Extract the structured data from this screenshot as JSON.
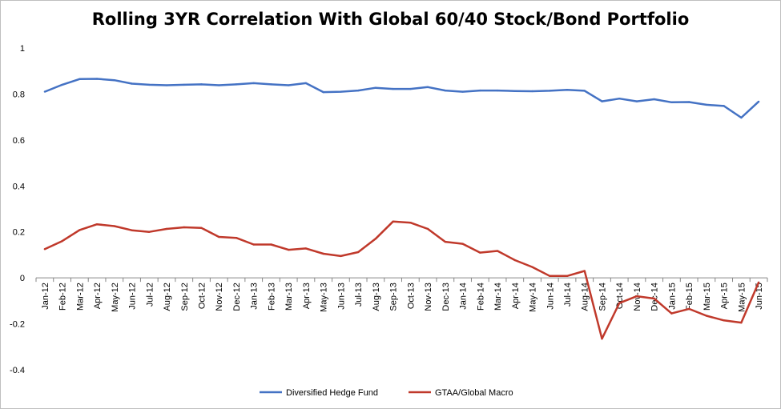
{
  "chart_data": {
    "type": "line",
    "title": "Rolling 3YR Correlation With Global 60/40 Stock/Bond Portfolio",
    "xlabel": "",
    "ylabel": "",
    "ylim": [
      -0.4,
      1
    ],
    "yticks": [
      -0.4,
      -0.2,
      0,
      0.2,
      0.4,
      0.6,
      0.8,
      1
    ],
    "ytick_labels": [
      "-0.4",
      "-0.2",
      "0",
      "0.2",
      "0.4",
      "0.6",
      "0.8",
      "1"
    ],
    "categories": [
      "Jan-12",
      "Feb-12",
      "Mar-12",
      "Apr-12",
      "May-12",
      "Jun-12",
      "Jul-12",
      "Aug-12",
      "Sep-12",
      "Oct-12",
      "Nov-12",
      "Dec-12",
      "Jan-13",
      "Feb-13",
      "Mar-13",
      "Apr-13",
      "May-13",
      "Jun-13",
      "Jul-13",
      "Aug-13",
      "Sep-13",
      "Oct-13",
      "Nov-13",
      "Dec-13",
      "Jan-14",
      "Feb-14",
      "Mar-14",
      "Apr-14",
      "May-14",
      "Jun-14",
      "Jul-14",
      "Aug-14",
      "Sep-14",
      "Oct-14",
      "Nov-14",
      "Dec-14",
      "Jan-15",
      "Feb-15",
      "Mar-15",
      "Apr-15",
      "May-15",
      "Jun-15"
    ],
    "series": [
      {
        "name": "Diversified Hedge Fund",
        "color": "#4472c4",
        "values": [
          0.81,
          0.84,
          0.865,
          0.866,
          0.86,
          0.845,
          0.84,
          0.838,
          0.84,
          0.842,
          0.838,
          0.842,
          0.847,
          0.842,
          0.838,
          0.847,
          0.808,
          0.81,
          0.815,
          0.827,
          0.822,
          0.822,
          0.83,
          0.815,
          0.81,
          0.815,
          0.815,
          0.813,
          0.812,
          0.814,
          0.818,
          0.814,
          0.768,
          0.78,
          0.768,
          0.777,
          0.764,
          0.765,
          0.753,
          0.748,
          0.697,
          0.767
        ]
      },
      {
        "name": "GTAA/Global Macro",
        "color": "#c0392b",
        "values": [
          0.125,
          0.16,
          0.208,
          0.233,
          0.225,
          0.207,
          0.2,
          0.213,
          0.22,
          0.217,
          0.178,
          0.174,
          0.145,
          0.145,
          0.122,
          0.128,
          0.105,
          0.095,
          0.112,
          0.17,
          0.245,
          0.24,
          0.213,
          0.157,
          0.148,
          0.11,
          0.117,
          0.077,
          0.047,
          0.008,
          0.008,
          0.03,
          -0.265,
          -0.11,
          -0.08,
          -0.09,
          -0.155,
          -0.135,
          -0.165,
          -0.185,
          -0.195,
          -0.02
        ]
      }
    ],
    "legend": "bottom"
  }
}
